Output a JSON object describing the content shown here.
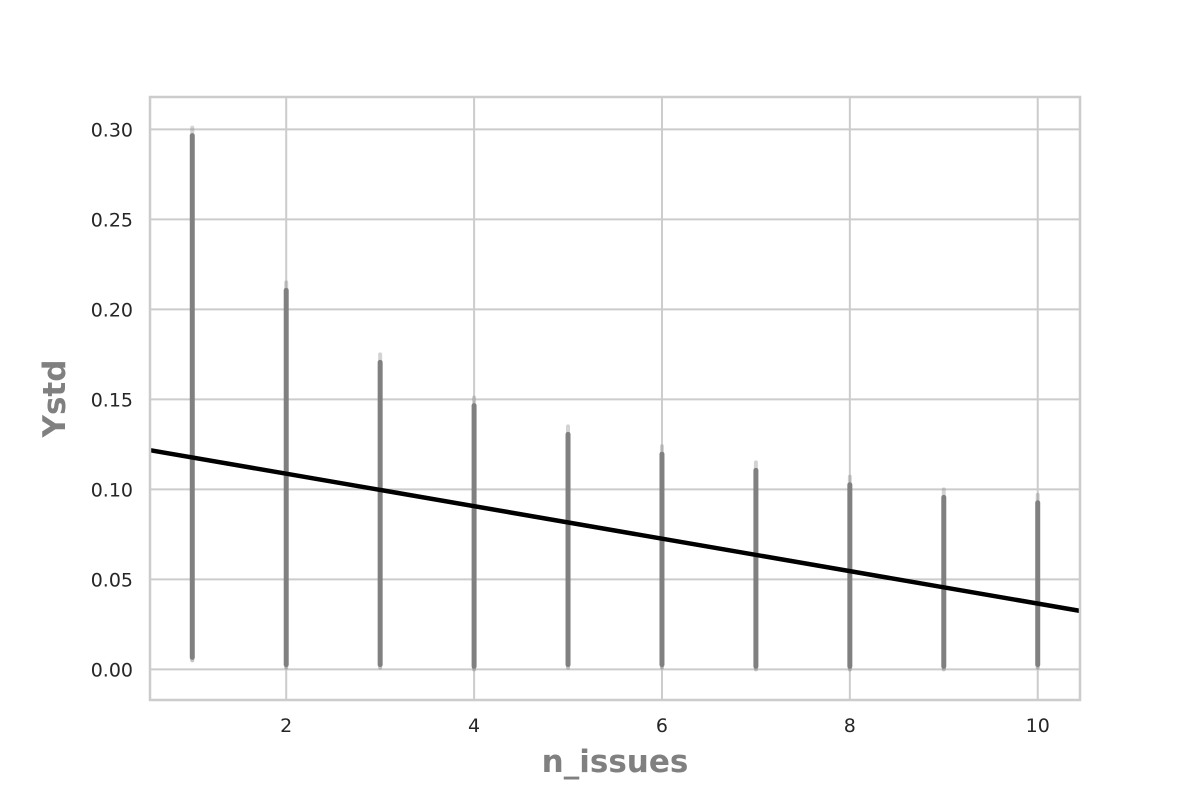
{
  "chart_data": {
    "type": "scatter",
    "title": "",
    "xlabel": "n_issues",
    "ylabel": "Ystd",
    "xlim": [
      0.55,
      10.45
    ],
    "ylim": [
      -0.017,
      0.318
    ],
    "x_ticks": [
      "2",
      "4",
      "6",
      "8",
      "10"
    ],
    "y_ticks": [
      "0.00",
      "0.05",
      "0.10",
      "0.15",
      "0.20",
      "0.25",
      "0.30"
    ],
    "grid": true,
    "style": {
      "background": "#ffffff",
      "grid_color": "#cccccc",
      "point_color": "#808080",
      "line_color": "#000000",
      "text_color": "#262626",
      "label_color": "#808080"
    },
    "scatter_columns": [
      {
        "x": 1,
        "y_min": 0.005,
        "y_max": 0.301
      },
      {
        "x": 2,
        "y_min": 0.001,
        "y_max": 0.215
      },
      {
        "x": 3,
        "y_min": 0.001,
        "y_max": 0.175
      },
      {
        "x": 4,
        "y_min": 0.0,
        "y_max": 0.151
      },
      {
        "x": 5,
        "y_min": 0.001,
        "y_max": 0.135
      },
      {
        "x": 6,
        "y_min": 0.001,
        "y_max": 0.124
      },
      {
        "x": 7,
        "y_min": 0.0,
        "y_max": 0.115
      },
      {
        "x": 8,
        "y_min": 0.0,
        "y_max": 0.107
      },
      {
        "x": 9,
        "y_min": 0.0,
        "y_max": 0.1
      },
      {
        "x": 10,
        "y_min": 0.001,
        "y_max": 0.097
      }
    ],
    "regression_line": {
      "x": [
        0.55,
        10.45
      ],
      "y": [
        0.1218,
        0.0325
      ]
    }
  }
}
